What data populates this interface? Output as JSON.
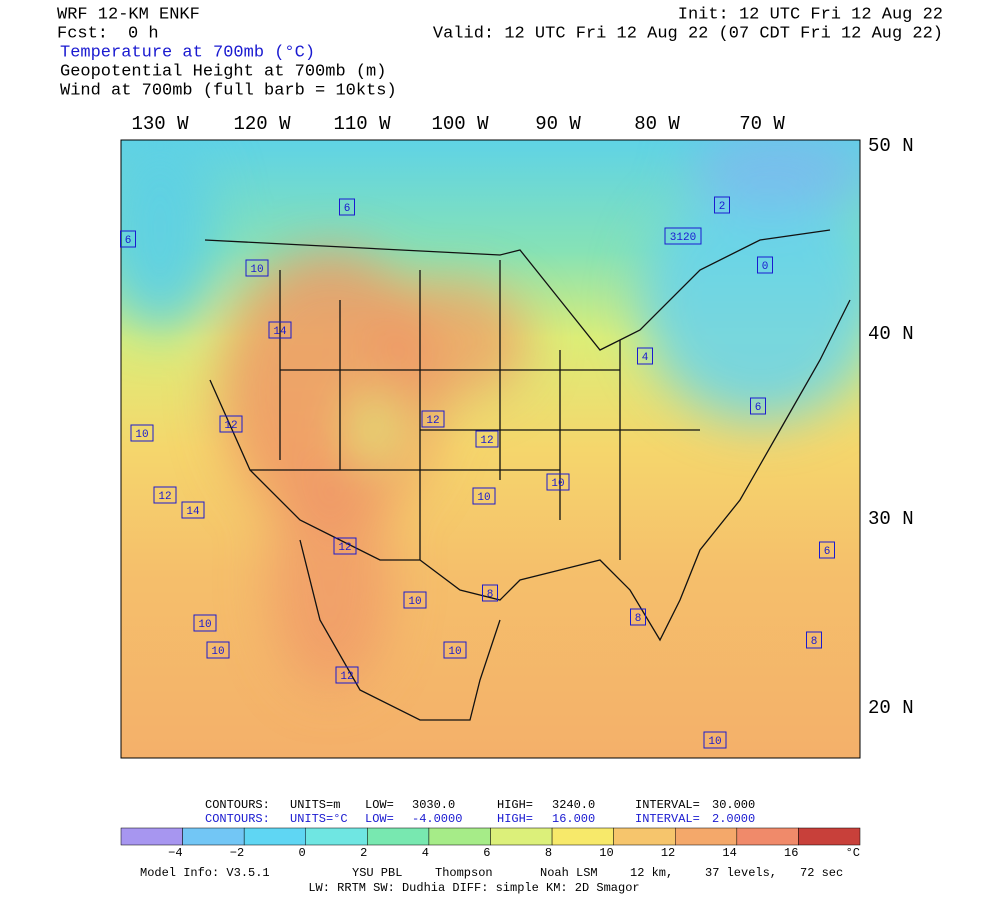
{
  "header": {
    "model": "WRF 12-KM ENKF",
    "init": "Init: 12 UTC Fri 12 Aug 22",
    "fcst_label": "Fcst:",
    "fcst_value": "0 h",
    "valid": "Valid: 12 UTC Fri 12 Aug 22 (07 CDT Fri 12 Aug 22)",
    "fields": [
      "Temperature at 700mb (°C)",
      "Geopotential Height at 700mb (m)",
      "Wind at 700mb (full barb = 10kts)"
    ]
  },
  "map": {
    "lon_labels": [
      "130 W",
      "120 W",
      "110 W",
      "100 W",
      "90 W",
      "80 W",
      "70 W"
    ],
    "lat_labels": [
      "50 N",
      "40 N",
      "30 N",
      "20 N"
    ],
    "contour_labels": [
      "3120",
      "14",
      "12",
      "12",
      "10",
      "10",
      "12",
      "10",
      "8",
      "10",
      "10",
      "12",
      "10",
      "10",
      "8",
      "6",
      "4",
      "2",
      "6",
      "10",
      "10",
      "12",
      "14",
      "12",
      "6",
      "8",
      "6",
      "0"
    ]
  },
  "contours": [
    [
      "CONTOURS:",
      "UNITS=m",
      "LOW=",
      "3030.0",
      "HIGH=",
      "3240.0",
      "INTERVAL=",
      "30.000"
    ],
    [
      "CONTOURS:",
      "UNITS=°C",
      "LOW=",
      "-4.0000",
      "HIGH=",
      "16.000",
      "INTERVAL=",
      "2.0000"
    ]
  ],
  "colorbar": {
    "colors": [
      "#a796f0",
      "#72c6f5",
      "#5fd6f3",
      "#6fe6e2",
      "#78e8b0",
      "#a6ec88",
      "#dcf07a",
      "#f7e96a",
      "#f6c56c",
      "#f4a86a",
      "#f08a6a",
      "#c8403a"
    ],
    "labels": [
      "−4",
      "−2",
      "0",
      "2",
      "4",
      "6",
      "8",
      "10",
      "12",
      "14",
      "16"
    ],
    "unit": "°C"
  },
  "footer": {
    "line1": [
      "Model Info: V3.5.1",
      "YSU PBL",
      "Thompson",
      "Noah LSM",
      "12 km,",
      "37 levels,",
      "72 sec"
    ],
    "line2": "LW: RRTM SW: Dudhia  DIFF: simple KM: 2D Smagor"
  }
}
